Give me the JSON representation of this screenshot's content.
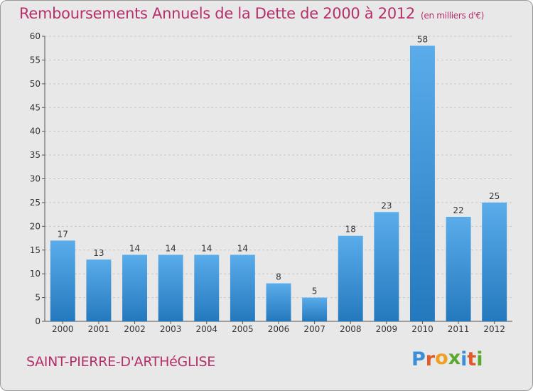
{
  "title": "Remboursements Annuels de la Dette de 2000 à 2012",
  "title_unit": "(en milliers d'€)",
  "commune": "SAINT-PIERRE-D'ARTHéGLISE",
  "logo": {
    "text": "Proxiti",
    "colors": [
      "#3a8fd6",
      "#e05a2a",
      "#f0a020",
      "#5aa830",
      "#3a8fd6",
      "#e05a2a",
      "#5aa830"
    ]
  },
  "colors": {
    "bar_top": "#5aacea",
    "bar_bottom": "#2479be",
    "title": "#b5306b"
  },
  "chart_data": {
    "type": "bar",
    "categories": [
      "2000",
      "2001",
      "2002",
      "2003",
      "2004",
      "2005",
      "2006",
      "2007",
      "2008",
      "2009",
      "2010",
      "2011",
      "2012"
    ],
    "values": [
      17,
      13,
      14,
      14,
      14,
      14,
      8,
      5,
      18,
      23,
      58,
      22,
      25
    ],
    "ylim": [
      0,
      60
    ],
    "yticks": [
      0,
      5,
      10,
      15,
      20,
      25,
      30,
      35,
      40,
      45,
      50,
      55,
      60
    ],
    "grid": true
  }
}
